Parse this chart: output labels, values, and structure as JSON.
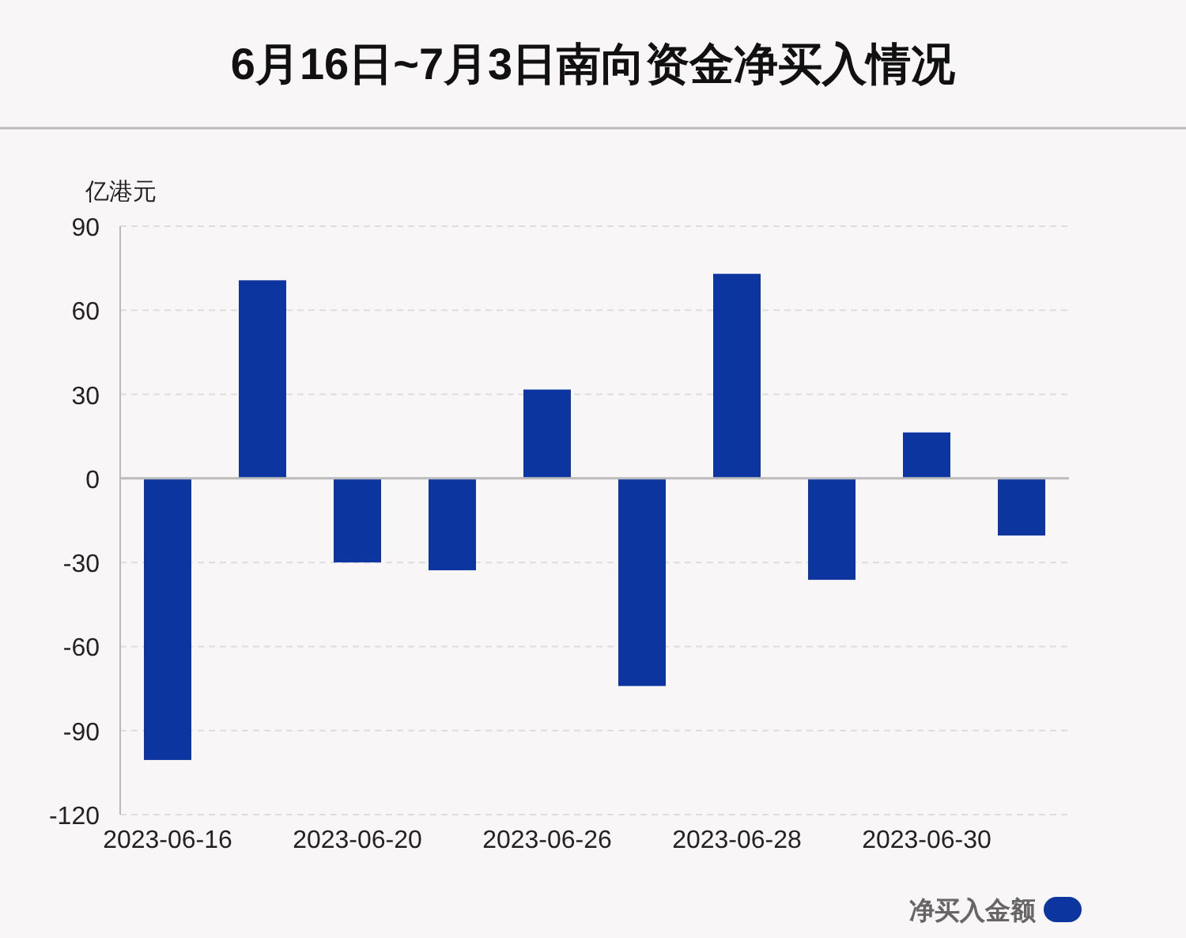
{
  "chart_data": {
    "type": "bar",
    "title": "6月16日~7月3日南向资金净买入情况",
    "ylabel": "亿港元",
    "categories": [
      "2023-06-16",
      null,
      "2023-06-20",
      null,
      "2023-06-26",
      null,
      "2023-06-28",
      null,
      "2023-06-30",
      null
    ],
    "series": [
      {
        "name": "净买入金额",
        "color": "#0d35a0",
        "values": [
          -100.5,
          70.7,
          -30.0,
          -32.8,
          31.7,
          -74.1,
          73.0,
          -36.2,
          16.4,
          -20.4
        ]
      }
    ],
    "ylim": [
      -120,
      90
    ],
    "yticks": [
      -120,
      -90,
      -60,
      -30,
      0,
      30,
      60,
      90
    ],
    "grid": "y",
    "legend": "bottom right"
  }
}
